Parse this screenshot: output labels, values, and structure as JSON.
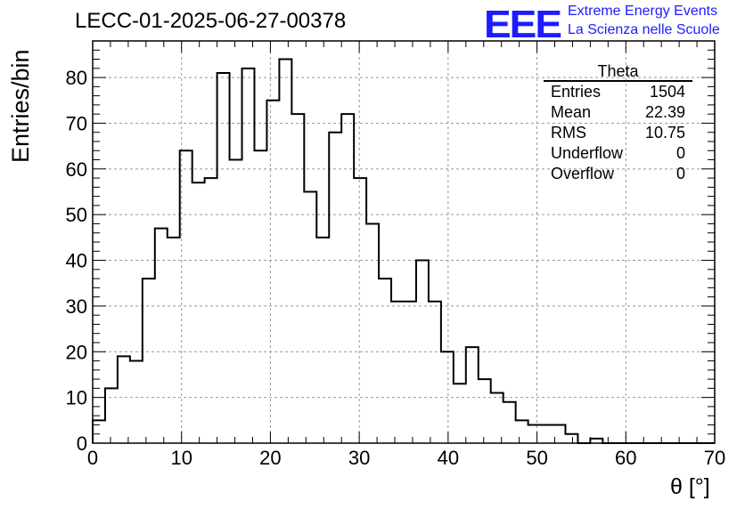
{
  "chart_data": {
    "type": "histogram",
    "title": "LECC-01-2025-06-27-00378",
    "xlabel": "θ [°]",
    "ylabel": "Entries/bin",
    "xlim": [
      0,
      70
    ],
    "ylim": [
      0,
      88
    ],
    "grid": true,
    "bin_width": 1.4,
    "x_ticks": [
      0,
      10,
      20,
      30,
      40,
      50,
      60,
      70
    ],
    "y_ticks": [
      0,
      10,
      20,
      30,
      40,
      50,
      60,
      70,
      80
    ],
    "values": [
      5,
      12,
      19,
      18,
      36,
      47,
      45,
      64,
      57,
      58,
      81,
      62,
      82,
      64,
      75,
      84,
      72,
      55,
      45,
      68,
      72,
      58,
      48,
      36,
      31,
      31,
      40,
      31,
      20,
      13,
      21,
      14,
      11,
      9,
      5,
      4,
      4,
      4,
      2,
      0,
      1,
      0,
      0,
      0,
      0,
      0,
      0,
      0,
      0,
      0
    ],
    "series": [
      {
        "name": "Theta"
      }
    ]
  },
  "stats": {
    "title": "Theta",
    "rows": [
      {
        "label": "Entries",
        "value": "1504"
      },
      {
        "label": "Mean",
        "value": "22.39"
      },
      {
        "label": "RMS",
        "value": "10.75"
      },
      {
        "label": "Underflow",
        "value": "0"
      },
      {
        "label": "Overflow",
        "value": "0"
      }
    ]
  },
  "logo": {
    "mark": "EEE",
    "line1": "Extreme Energy Events",
    "line2": "La Scienza nelle Scuole",
    "color": "#1c1cff"
  }
}
